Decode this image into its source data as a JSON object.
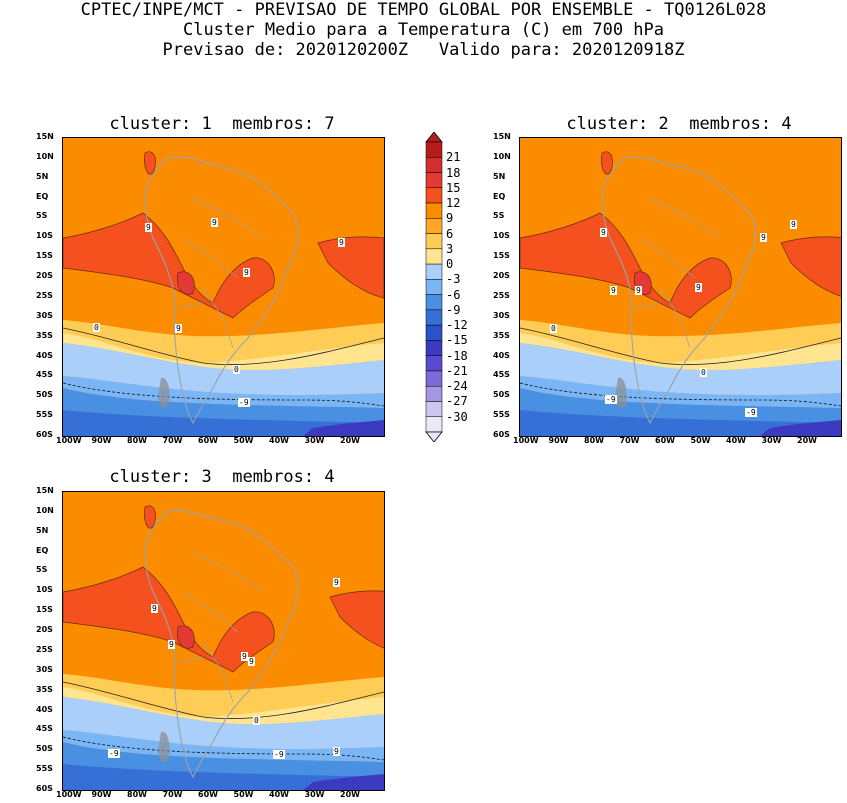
{
  "header": {
    "line1": "CPTEC/INPE/MCT - PREVISAO DE TEMPO GLOBAL POR ENSEMBLE - TQ0126L028",
    "line2": "Cluster Medio para a Temperatura (C) em 700 hPa",
    "line3": "Previsao de: 2020120200Z   Valido para: 2020120918Z"
  },
  "panels": [
    {
      "title": "cluster: 1  membros: 7",
      "labels": [
        "9",
        "9",
        "9",
        "9",
        "9",
        "0",
        "0",
        "-9"
      ]
    },
    {
      "title": "cluster: 2  membros: 4",
      "labels": [
        "9",
        "9",
        "9",
        "9",
        "9",
        "9",
        "0",
        "0",
        "-9",
        "-9"
      ]
    },
    {
      "title": "cluster: 3  membros: 4",
      "labels": [
        "9",
        "9",
        "9",
        "9",
        "9",
        "9",
        "0",
        "-9",
        "-9"
      ]
    }
  ],
  "lat_ticks": [
    "15N",
    "10N",
    "5N",
    "EQ",
    "5S",
    "10S",
    "15S",
    "20S",
    "25S",
    "30S",
    "35S",
    "40S",
    "45S",
    "50S",
    "55S",
    "60S"
  ],
  "lon_ticks": [
    "100W",
    "90W",
    "80W",
    "70W",
    "60W",
    "50W",
    "40W",
    "30W",
    "20W"
  ],
  "colorbar": {
    "labels": [
      "21",
      "18",
      "15",
      "12",
      "9",
      "6",
      "3",
      "0",
      "-3",
      "-6",
      "-9",
      "-12",
      "-15",
      "-18",
      "-21",
      "-24",
      "-27",
      "-30"
    ],
    "colors": [
      "#b71c1c",
      "#d32f2f",
      "#e53935",
      "#f4511e",
      "#fb8c00",
      "#ffa726",
      "#ffcc55",
      "#ffe58f",
      "#a9cffa",
      "#7ab6f5",
      "#4a90e2",
      "#3670d6",
      "#2c52c9",
      "#3d3ac2",
      "#5a4ad0",
      "#7e6ad8",
      "#a695e3",
      "#cfc6ef",
      "#ece8f8"
    ]
  }
}
